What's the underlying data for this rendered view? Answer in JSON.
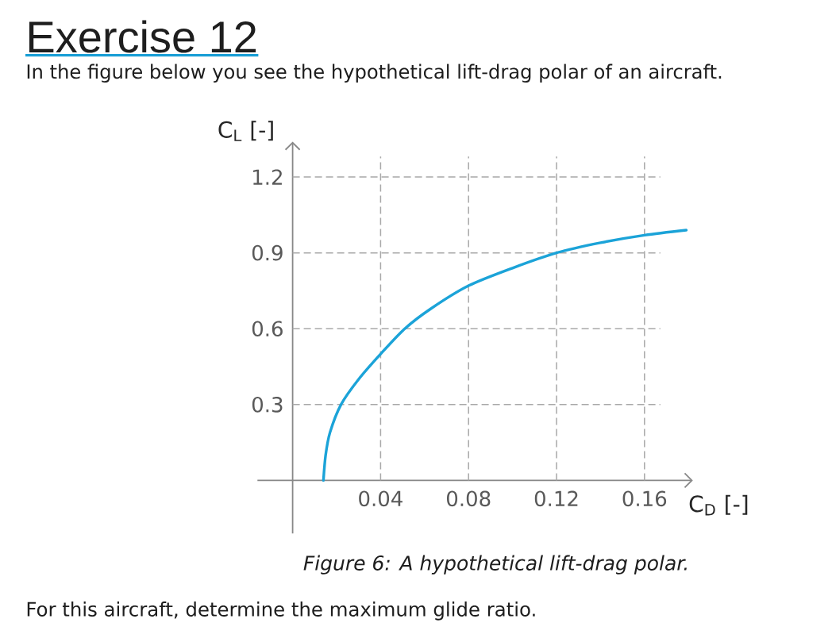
{
  "chart_data": {
    "type": "line",
    "title": "Exercise 12",
    "subtitle": "In the figure below you see the hypothetical lift-drag polar of an aircraft.",
    "xlabel": "C$_{D}$ [-]",
    "ylabel": "C$_{L}$ [-]",
    "annotations": [
      "Figure 6: A hypothetical lift-drag polar.",
      "For this aircraft, determine the maximum glide ratio."
    ],
    "x": [
      0.014,
      0.015,
      0.017,
      0.022,
      0.03,
      0.04,
      0.051,
      0.063,
      0.08,
      0.1,
      0.12,
      0.14,
      0.16,
      0.179
    ],
    "series": [
      {
        "color": "#1ba3d8",
        "values": [
          0,
          0.1,
          0.19,
          0.3,
          0.4,
          0.5,
          0.6,
          0.68,
          0.77,
          0.84,
          0.9,
          0.94,
          0.97,
          0.99
        ]
      }
    ],
    "xlim": [
      -0.016,
      0.182
    ],
    "ylim": [
      -0.21,
      1.34
    ],
    "xticks": [
      0.04,
      0.08,
      0.12,
      0.16
    ],
    "yticks": [
      0.3,
      0.6,
      0.9,
      1.2
    ],
    "grid": true
  }
}
